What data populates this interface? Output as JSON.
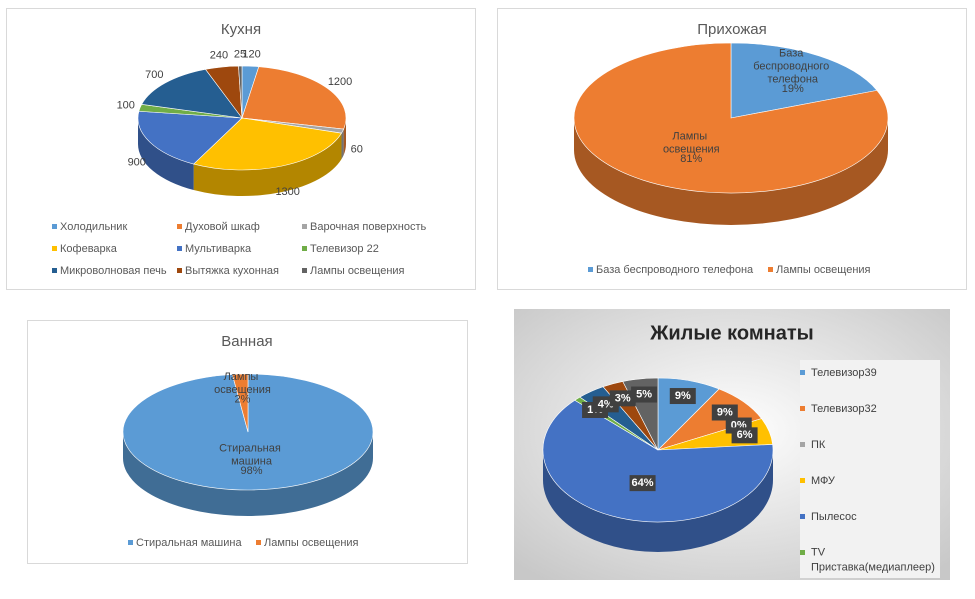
{
  "chart_data": [
    {
      "type": "pie",
      "title": "Кухня",
      "categories": [
        "Холодильник",
        "Духовой шкаф",
        "Варочная поверхность",
        "Кофеварка",
        "Мультиварка",
        "Телевизор 22",
        "Микроволновая печь",
        "Вытяжка кухонная",
        "Лампы освещения"
      ],
      "values": [
        120,
        1200,
        60,
        1300,
        900,
        100,
        700,
        240,
        25
      ],
      "colors": [
        "#5b9bd5",
        "#ed7d31",
        "#a5a5a5",
        "#ffc000",
        "#4472c4",
        "#70ad47",
        "#255e91",
        "#9e480e",
        "#636363"
      ],
      "legend": "bottom"
    },
    {
      "type": "pie",
      "title": "Прихожая",
      "categories": [
        "База беспроводного телефона",
        "Лампы освещения"
      ],
      "values": [
        19,
        81
      ],
      "value_labels": [
        "19%",
        "81%"
      ],
      "colors": [
        "#5b9bd5",
        "#ed7d31"
      ],
      "legend": "bottom"
    },
    {
      "type": "pie",
      "title": "Ванная",
      "categories": [
        "Стиральная машина",
        "Лампы освещения"
      ],
      "values": [
        98,
        2
      ],
      "value_labels": [
        "98%",
        "2%"
      ],
      "colors": [
        "#5b9bd5",
        "#ed7d31"
      ],
      "legend": "bottom"
    },
    {
      "type": "pie",
      "title": "Жилые комнаты",
      "categories": [
        "Телевизор39",
        "Телевизор32",
        "ПК",
        "МФУ",
        "Пылесос",
        "TV Приставка(медиаплеер)",
        null,
        null,
        null
      ],
      "values": [
        9,
        9,
        0,
        6,
        64,
        1,
        4,
        3,
        5
      ],
      "value_labels": [
        "9%",
        "9%",
        "0%",
        "6%",
        "64%",
        "1%",
        "4%",
        "3%",
        "5%"
      ],
      "colors": [
        "#5b9bd5",
        "#ed7d31",
        "#a5a5a5",
        "#ffc000",
        "#4472c4",
        "#70ad47",
        "#255e91",
        "#9e480e",
        "#636363"
      ],
      "legend": "right"
    }
  ]
}
